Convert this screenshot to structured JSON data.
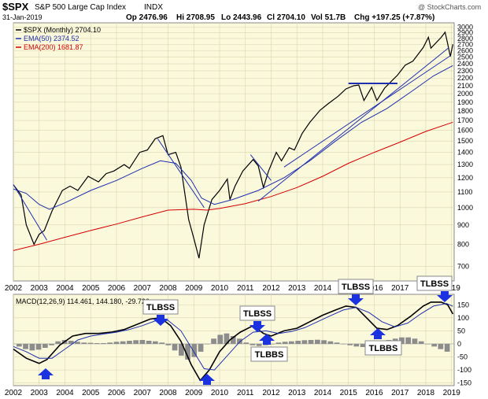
{
  "header": {
    "symbol": "$SPX",
    "name": "S&P 500 Large Cap Index",
    "exchange": "INDX",
    "date": "31-Jan-2019",
    "open": "Op 2476.96",
    "high": "Hi 2708.95",
    "low": "Lo 2443.96",
    "close": "Cl 2704.10",
    "volume": "Vol 51.7B",
    "change": "Chg +197.25 (+7.87%)",
    "watermark": "@ StockCharts.com"
  },
  "legend": {
    "price": "$SPX (Monthly) 2704.10",
    "ema50": "EMA(50) 2374.52",
    "ema200": "EMA(200) 1681.87",
    "macd": "MACD(12,26,9) 114.461, 144.180, -29.720"
  },
  "colors": {
    "panel_bg": "#fbf9dc",
    "price": "#000000",
    "ema50": "#1f2fae",
    "ema200": "#d40000",
    "trendline": "#1f2fae",
    "arrow": "#1a32e0",
    "histogram": "#8c8c8c"
  },
  "chart_data": [
    {
      "type": "line",
      "title": "$SPX",
      "scale": "log",
      "ylim": [
        640,
        3080
      ],
      "y_ticks": [
        700,
        800,
        900,
        1000,
        1100,
        1200,
        1300,
        1400,
        1500,
        1600,
        1700,
        1800,
        1900,
        2000,
        2100,
        2200,
        2300,
        2400,
        2500,
        2600,
        2700,
        2800,
        2900,
        3000
      ],
      "x_ticks": [
        "2002",
        "2003",
        "2004",
        "2005",
        "2006",
        "2007",
        "2008",
        "2009",
        "2010",
        "2011",
        "2012",
        "2013",
        "2014",
        "2015",
        "2016",
        "2017",
        "2018",
        "2019"
      ],
      "xlim": [
        2002.0,
        2019.1
      ],
      "series": [
        {
          "name": "$SPX (Monthly)",
          "points": [
            [
              2002.0,
              1150
            ],
            [
              2002.3,
              1080
            ],
            [
              2002.5,
              900
            ],
            [
              2002.8,
              800
            ],
            [
              2003.0,
              850
            ],
            [
              2003.2,
              870
            ],
            [
              2003.5,
              980
            ],
            [
              2003.9,
              1110
            ],
            [
              2004.2,
              1140
            ],
            [
              2004.5,
              1110
            ],
            [
              2004.9,
              1210
            ],
            [
              2005.3,
              1170
            ],
            [
              2005.6,
              1230
            ],
            [
              2005.9,
              1250
            ],
            [
              2006.3,
              1300
            ],
            [
              2006.5,
              1270
            ],
            [
              2006.9,
              1400
            ],
            [
              2007.2,
              1420
            ],
            [
              2007.5,
              1520
            ],
            [
              2007.8,
              1550
            ],
            [
              2008.0,
              1380
            ],
            [
              2008.3,
              1400
            ],
            [
              2008.5,
              1280
            ],
            [
              2008.8,
              930
            ],
            [
              2009.0,
              830
            ],
            [
              2009.2,
              735
            ],
            [
              2009.4,
              900
            ],
            [
              2009.7,
              1050
            ],
            [
              2010.0,
              1110
            ],
            [
              2010.3,
              1190
            ],
            [
              2010.4,
              1050
            ],
            [
              2010.6,
              1140
            ],
            [
              2010.9,
              1250
            ],
            [
              2011.3,
              1340
            ],
            [
              2011.5,
              1290
            ],
            [
              2011.7,
              1130
            ],
            [
              2011.9,
              1250
            ],
            [
              2012.2,
              1400
            ],
            [
              2012.4,
              1330
            ],
            [
              2012.7,
              1440
            ],
            [
              2012.9,
              1420
            ],
            [
              2013.2,
              1570
            ],
            [
              2013.5,
              1680
            ],
            [
              2013.9,
              1810
            ],
            [
              2014.2,
              1880
            ],
            [
              2014.6,
              1970
            ],
            [
              2014.9,
              2060
            ],
            [
              2015.2,
              2100
            ],
            [
              2015.4,
              2110
            ],
            [
              2015.6,
              1920
            ],
            [
              2015.9,
              2080
            ],
            [
              2016.1,
              1920
            ],
            [
              2016.4,
              2070
            ],
            [
              2016.7,
              2170
            ],
            [
              2016.9,
              2240
            ],
            [
              2017.2,
              2380
            ],
            [
              2017.5,
              2440
            ],
            [
              2017.9,
              2650
            ],
            [
              2018.1,
              2820
            ],
            [
              2018.2,
              2640
            ],
            [
              2018.6,
              2820
            ],
            [
              2018.75,
              2910
            ],
            [
              2018.85,
              2710
            ],
            [
              2018.95,
              2510
            ],
            [
              2019.05,
              2704
            ]
          ]
        },
        {
          "name": "EMA(50)",
          "points": [
            [
              2002.0,
              1120
            ],
            [
              2002.5,
              1090
            ],
            [
              2003.0,
              1020
            ],
            [
              2003.4,
              990
            ],
            [
              2004.0,
              1030
            ],
            [
              2005.0,
              1110
            ],
            [
              2006.0,
              1180
            ],
            [
              2007.0,
              1270
            ],
            [
              2007.7,
              1330
            ],
            [
              2008.3,
              1310
            ],
            [
              2008.9,
              1180
            ],
            [
              2009.3,
              1060
            ],
            [
              2009.8,
              1020
            ],
            [
              2010.5,
              1050
            ],
            [
              2011.5,
              1110
            ],
            [
              2012.5,
              1200
            ],
            [
              2013.5,
              1330
            ],
            [
              2014.5,
              1500
            ],
            [
              2015.5,
              1680
            ],
            [
              2016.5,
              1830
            ],
            [
              2017.5,
              2040
            ],
            [
              2018.3,
              2230
            ],
            [
              2019.05,
              2374.52
            ]
          ]
        },
        {
          "name": "EMA(200)",
          "points": [
            [
              2002.0,
              770
            ],
            [
              2003.0,
              800
            ],
            [
              2004.0,
              835
            ],
            [
              2005.0,
              870
            ],
            [
              2006.0,
              905
            ],
            [
              2007.0,
              945
            ],
            [
              2008.0,
              985
            ],
            [
              2009.0,
              990
            ],
            [
              2009.5,
              985
            ],
            [
              2010.0,
              995
            ],
            [
              2011.0,
              1025
            ],
            [
              2012.0,
              1070
            ],
            [
              2013.0,
              1130
            ],
            [
              2014.0,
              1210
            ],
            [
              2015.0,
              1310
            ],
            [
              2016.0,
              1400
            ],
            [
              2017.0,
              1490
            ],
            [
              2018.0,
              1590
            ],
            [
              2019.05,
              1681.87
            ]
          ]
        }
      ]
    },
    {
      "type": "line",
      "title": "MACD(12,26,9)",
      "ylim": [
        -160,
        190
      ],
      "y_ticks": [
        -150,
        -100,
        -50,
        0,
        50,
        100,
        150
      ],
      "x_ticks": [
        "2002",
        "2003",
        "2004",
        "2005",
        "2006",
        "2007",
        "2008",
        "2009",
        "2010",
        "2011",
        "2012",
        "2013",
        "2014",
        "2015",
        "2016",
        "2017",
        "2018",
        "2019"
      ],
      "series": [
        {
          "name": "MACD",
          "points": [
            [
              2002.0,
              -20
            ],
            [
              2002.5,
              -55
            ],
            [
              2003.0,
              -75
            ],
            [
              2003.3,
              -60
            ],
            [
              2003.8,
              -5
            ],
            [
              2004.3,
              30
            ],
            [
              2004.8,
              40
            ],
            [
              2005.3,
              40
            ],
            [
              2005.8,
              45
            ],
            [
              2006.3,
              55
            ],
            [
              2006.8,
              75
            ],
            [
              2007.3,
              95
            ],
            [
              2007.7,
              100
            ],
            [
              2008.1,
              70
            ],
            [
              2008.5,
              10
            ],
            [
              2008.9,
              -80
            ],
            [
              2009.25,
              -140
            ],
            [
              2009.6,
              -100
            ],
            [
              2010.0,
              -30
            ],
            [
              2010.4,
              15
            ],
            [
              2010.8,
              45
            ],
            [
              2011.3,
              70
            ],
            [
              2011.7,
              40
            ],
            [
              2012.0,
              30
            ],
            [
              2012.5,
              50
            ],
            [
              2013.0,
              60
            ],
            [
              2013.5,
              85
            ],
            [
              2014.0,
              110
            ],
            [
              2014.5,
              130
            ],
            [
              2014.9,
              145
            ],
            [
              2015.3,
              140
            ],
            [
              2015.7,
              100
            ],
            [
              2016.1,
              60
            ],
            [
              2016.5,
              55
            ],
            [
              2016.9,
              70
            ],
            [
              2017.4,
              105
            ],
            [
              2017.9,
              145
            ],
            [
              2018.2,
              160
            ],
            [
              2018.6,
              160
            ],
            [
              2018.85,
              150
            ],
            [
              2019.05,
              114.461
            ]
          ]
        },
        {
          "name": "Signal",
          "points": [
            [
              2002.0,
              -10
            ],
            [
              2002.5,
              -30
            ],
            [
              2003.0,
              -55
            ],
            [
              2003.5,
              -55
            ],
            [
              2004.0,
              -20
            ],
            [
              2004.5,
              15
            ],
            [
              2005.0,
              30
            ],
            [
              2005.5,
              38
            ],
            [
              2006.0,
              45
            ],
            [
              2006.5,
              55
            ],
            [
              2007.0,
              70
            ],
            [
              2007.5,
              88
            ],
            [
              2008.0,
              90
            ],
            [
              2008.5,
              50
            ],
            [
              2009.0,
              -30
            ],
            [
              2009.4,
              -95
            ],
            [
              2009.8,
              -100
            ],
            [
              2010.3,
              -45
            ],
            [
              2010.8,
              10
            ],
            [
              2011.3,
              45
            ],
            [
              2011.8,
              50
            ],
            [
              2012.3,
              40
            ],
            [
              2012.8,
              48
            ],
            [
              2013.3,
              62
            ],
            [
              2013.8,
              85
            ],
            [
              2014.3,
              108
            ],
            [
              2014.8,
              130
            ],
            [
              2015.3,
              140
            ],
            [
              2015.8,
              120
            ],
            [
              2016.3,
              85
            ],
            [
              2016.8,
              65
            ],
            [
              2017.3,
              80
            ],
            [
              2017.8,
              115
            ],
            [
              2018.3,
              145
            ],
            [
              2018.8,
              155
            ],
            [
              2019.05,
              144.18
            ]
          ]
        }
      ],
      "histogram": [
        -10,
        -20,
        -25,
        -22,
        -15,
        -5,
        10,
        15,
        12,
        8,
        5,
        4,
        3,
        3,
        5,
        8,
        10,
        12,
        14,
        15,
        12,
        10,
        5,
        -5,
        -25,
        -45,
        -60,
        -50,
        -30,
        0,
        20,
        35,
        40,
        30,
        20,
        5,
        -5,
        -8,
        -5,
        0,
        5,
        8,
        10,
        12,
        14,
        15,
        16,
        14,
        10,
        5,
        0,
        -5,
        -10,
        -12,
        -10,
        -5,
        5,
        15,
        20,
        25,
        25,
        20,
        10,
        0,
        -10,
        -20,
        -29.72
      ]
    }
  ],
  "annotations": {
    "tlbss_1": "TLBSS",
    "tlbss_2": "TLBSS",
    "tlbss_3": "TLBSS",
    "tlbss_4": "TLBSS",
    "tlbbs_1": "TLBBS",
    "tlbbs_2": "TLBBS"
  }
}
